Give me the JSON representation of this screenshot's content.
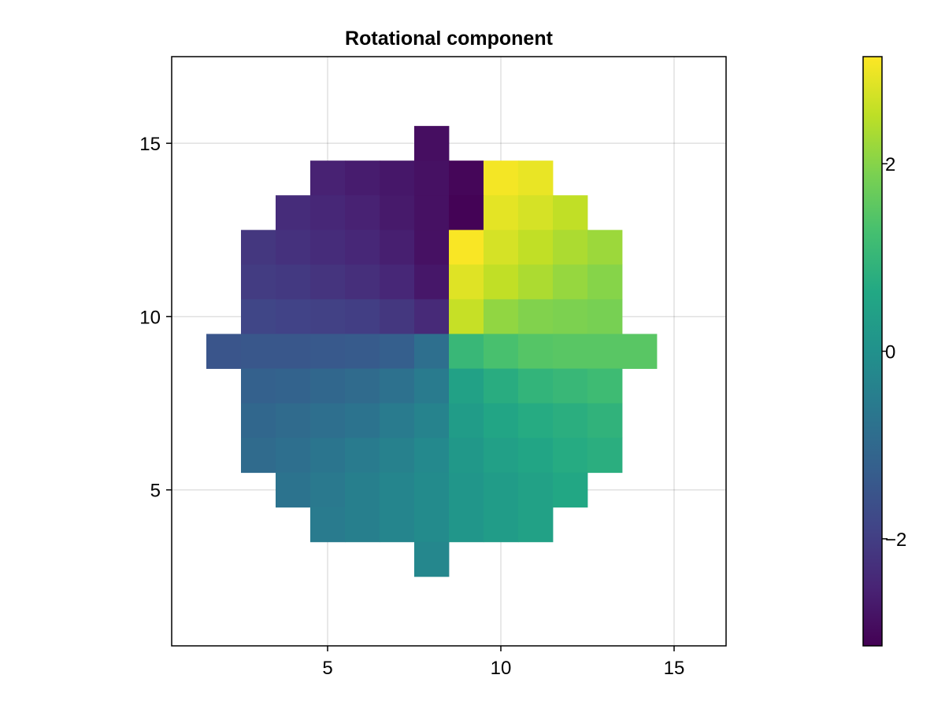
{
  "chart_data": {
    "type": "heatmap",
    "title": "Rotational component",
    "xlabel": "",
    "ylabel": "",
    "xlim": [
      0.5,
      16.5
    ],
    "ylim": [
      0.5,
      17.5
    ],
    "xticks": [
      5,
      10,
      15
    ],
    "yticks": [
      5,
      10,
      15
    ],
    "grid": true,
    "colormap": "viridis",
    "colorbar": {
      "range": [
        -3.1416,
        3.1416
      ],
      "ticks": [
        -2,
        0,
        2
      ],
      "tick_labels": [
        "−2",
        "0",
        "2"
      ]
    },
    "rows": [
      {
        "y": 15,
        "x_start": 8,
        "values": [
          -2.9
        ]
      },
      {
        "y": 14,
        "x_start": 5,
        "values": [
          -2.55,
          -2.65,
          -2.75,
          -2.85,
          -3.05,
          3.05,
          2.95
        ]
      },
      {
        "y": 13,
        "x_start": 4,
        "values": [
          -2.35,
          -2.45,
          -2.55,
          -2.7,
          -2.85,
          -3.1,
          2.9,
          2.75,
          2.55
        ]
      },
      {
        "y": 12,
        "x_start": 3,
        "values": [
          -2.15,
          -2.25,
          -2.35,
          -2.45,
          -2.6,
          -2.85,
          3.1,
          2.75,
          2.55,
          2.35,
          2.2
        ]
      },
      {
        "y": 11,
        "x_start": 3,
        "values": [
          -2.05,
          -2.1,
          -2.2,
          -2.3,
          -2.45,
          -2.75,
          2.85,
          2.55,
          2.35,
          2.15,
          2.0
        ]
      },
      {
        "y": 10,
        "x_start": 3,
        "values": [
          -1.85,
          -1.9,
          -1.95,
          -2.0,
          -2.15,
          -2.4,
          2.6,
          2.1,
          1.95,
          1.9,
          1.85
        ]
      },
      {
        "y": 9,
        "x_start": 2,
        "values": [
          -1.5,
          -1.45,
          -1.45,
          -1.4,
          -1.35,
          -1.25,
          -0.85,
          1.05,
          1.3,
          1.45,
          1.5,
          1.5,
          1.5
        ]
      },
      {
        "y": 8,
        "x_start": 3,
        "values": [
          -1.2,
          -1.15,
          -1.05,
          -0.95,
          -0.8,
          -0.55,
          0.45,
          0.75,
          0.95,
          1.05,
          1.15
        ]
      },
      {
        "y": 7,
        "x_start": 3,
        "values": [
          -1.05,
          -0.95,
          -0.85,
          -0.75,
          -0.55,
          -0.35,
          0.3,
          0.55,
          0.7,
          0.8,
          0.9
        ]
      },
      {
        "y": 6,
        "x_start": 3,
        "values": [
          -0.95,
          -0.85,
          -0.7,
          -0.55,
          -0.4,
          -0.2,
          0.2,
          0.4,
          0.55,
          0.7,
          0.8
        ]
      },
      {
        "y": 5,
        "x_start": 4,
        "values": [
          -0.75,
          -0.6,
          -0.45,
          -0.3,
          -0.15,
          0.15,
          0.3,
          0.45,
          0.6
        ]
      },
      {
        "y": 4,
        "x_start": 5,
        "values": [
          -0.55,
          -0.45,
          -0.3,
          -0.15,
          0.15,
          0.3,
          0.45
        ]
      },
      {
        "y": 3,
        "x_start": 8,
        "values": [
          -0.25
        ]
      }
    ]
  }
}
